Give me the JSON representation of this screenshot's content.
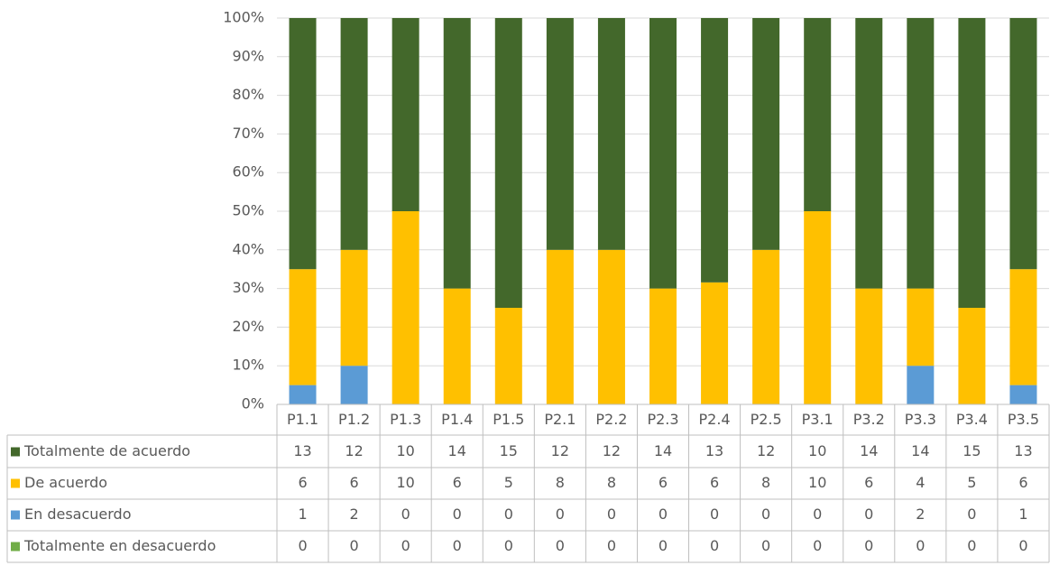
{
  "chart_data": {
    "type": "stacked_bar_100",
    "categories": [
      "P1.1",
      "P1.2",
      "P1.3",
      "P1.4",
      "P1.5",
      "P2.1",
      "P2.2",
      "P2.3",
      "P2.4",
      "P2.5",
      "P3.1",
      "P3.2",
      "P3.3",
      "P3.4",
      "P3.5"
    ],
    "series": [
      {
        "name": "Totalmente de acuerdo",
        "color": "#43682b",
        "values": [
          13,
          12,
          10,
          14,
          15,
          12,
          12,
          14,
          13,
          12,
          10,
          14,
          14,
          15,
          13
        ]
      },
      {
        "name": "De acuerdo",
        "color": "#ffc000",
        "values": [
          6,
          6,
          10,
          6,
          5,
          8,
          8,
          6,
          6,
          8,
          10,
          6,
          4,
          5,
          6
        ]
      },
      {
        "name": "En desacuerdo",
        "color": "#5b9bd5",
        "values": [
          1,
          2,
          0,
          0,
          0,
          0,
          0,
          0,
          0,
          0,
          0,
          0,
          2,
          0,
          1
        ]
      },
      {
        "name": "Totalmente en desacuerdo",
        "color": "#70ad47",
        "values": [
          0,
          0,
          0,
          0,
          0,
          0,
          0,
          0,
          0,
          0,
          0,
          0,
          0,
          0,
          0
        ]
      }
    ],
    "ylim": [
      0,
      100
    ],
    "yticks": [
      {
        "value": 0,
        "label": "0%"
      },
      {
        "value": 10,
        "label": "10%"
      },
      {
        "value": 20,
        "label": "20%"
      },
      {
        "value": 30,
        "label": "30%"
      },
      {
        "value": 40,
        "label": "40%"
      },
      {
        "value": 50,
        "label": "50%"
      },
      {
        "value": 60,
        "label": "60%"
      },
      {
        "value": 70,
        "label": "70%"
      },
      {
        "value": 80,
        "label": "80%"
      },
      {
        "value": 90,
        "label": "90%"
      },
      {
        "value": 100,
        "label": "100%"
      }
    ],
    "grid": true
  }
}
